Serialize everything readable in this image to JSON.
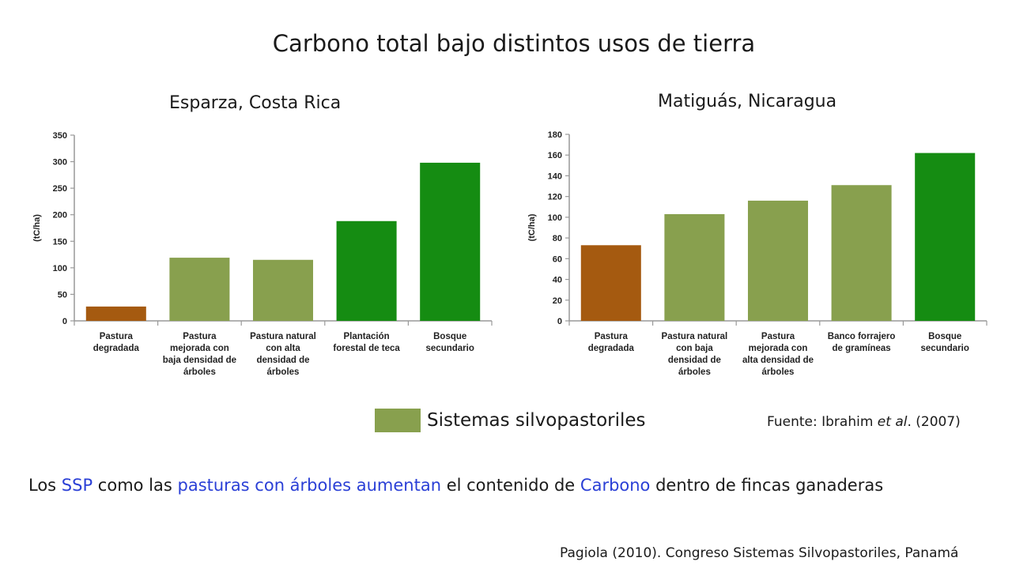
{
  "title": "Carbono total bajo distintos usos de tierra",
  "colors": {
    "degradada": "#a55a10",
    "silvopastoril": "#88a04e",
    "bosque": "#158c12",
    "axis": "#999999",
    "highlight": "#2a3fd6"
  },
  "legend": {
    "label": "Sistemas silvopastoriles"
  },
  "source": {
    "prefix": "Fuente: Ibrahim ",
    "italic": "et al",
    "suffix": ". (2007)"
  },
  "statement": {
    "p1": "Los ",
    "h1": "SSP",
    "p2": " como las ",
    "h2": "pasturas con árboles aumentan",
    "p3": " el contenido de ",
    "h3": "Carbono",
    "p4": " dentro de fincas ganaderas"
  },
  "citation": "Pagiola (2010). Congreso Sistemas Silvopastoriles, Panamá",
  "chart_data": [
    {
      "type": "bar",
      "title": "Esparza, Costa Rica",
      "ylabel": "(tC/ha)",
      "ylim": [
        0,
        350
      ],
      "yticks": [
        0,
        50,
        100,
        150,
        200,
        250,
        300,
        350
      ],
      "categories": [
        [
          "Pastura",
          "degradada"
        ],
        [
          "Pastura",
          "mejorada con",
          "baja densidad de",
          "árboles"
        ],
        [
          "Pastura natural",
          "con alta",
          "densidad de",
          "árboles"
        ],
        [
          "Plantación",
          "forestal de teca"
        ],
        [
          "Bosque",
          "secundario"
        ]
      ],
      "values": [
        27,
        119,
        115,
        188,
        298
      ],
      "colors": [
        "#a55a10",
        "#88a04e",
        "#88a04e",
        "#158c12",
        "#158c12"
      ]
    },
    {
      "type": "bar",
      "title": "Matiguás, Nicaragua",
      "ylabel": "(tC/ha)",
      "ylim": [
        0,
        180
      ],
      "yticks": [
        0,
        20,
        40,
        60,
        80,
        100,
        120,
        140,
        160,
        180
      ],
      "categories": [
        [
          "Pastura",
          "degradada"
        ],
        [
          "Pastura natural",
          "con baja",
          "densidad de",
          "árboles"
        ],
        [
          "Pastura",
          "mejorada con",
          "alta densidad de",
          "árboles"
        ],
        [
          "Banco forrajero",
          "de gramíneas"
        ],
        [
          "Bosque",
          "secundario"
        ]
      ],
      "values": [
        73,
        103,
        116,
        131,
        162
      ],
      "colors": [
        "#a55a10",
        "#88a04e",
        "#88a04e",
        "#88a04e",
        "#158c12"
      ]
    }
  ]
}
